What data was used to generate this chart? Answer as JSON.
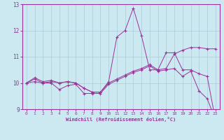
{
  "xlabel": "Windchill (Refroidissement éolien,°C)",
  "background_color": "#cce8f0",
  "line_color": "#993399",
  "grid_color": "#aaccdd",
  "xlim": [
    -0.5,
    23.5
  ],
  "ylim": [
    9.0,
    13.0
  ],
  "yticks": [
    9,
    10,
    11,
    12,
    13
  ],
  "xticks": [
    0,
    1,
    2,
    3,
    4,
    5,
    6,
    7,
    8,
    9,
    10,
    11,
    12,
    13,
    14,
    15,
    16,
    17,
    18,
    19,
    20,
    21,
    22,
    23
  ],
  "line1_y": [
    10.0,
    10.2,
    10.05,
    10.1,
    10.0,
    10.05,
    10.0,
    9.8,
    9.65,
    9.65,
    10.05,
    11.75,
    12.0,
    12.85,
    11.8,
    10.5,
    10.5,
    11.15,
    11.15,
    10.5,
    10.5,
    10.35,
    10.25,
    8.6
  ],
  "line2_y": [
    10.0,
    10.15,
    10.0,
    10.05,
    10.0,
    10.05,
    10.0,
    9.8,
    9.65,
    9.65,
    10.0,
    10.15,
    10.3,
    10.45,
    10.55,
    10.7,
    10.5,
    10.55,
    11.1,
    11.25,
    11.35,
    11.35,
    11.3,
    11.3
  ],
  "line3_y": [
    10.0,
    10.05,
    10.0,
    10.0,
    9.75,
    9.9,
    9.95,
    9.6,
    9.6,
    9.6,
    9.95,
    10.1,
    10.25,
    10.4,
    10.5,
    10.65,
    10.45,
    10.5,
    10.55,
    10.25,
    10.45,
    9.7,
    9.4,
    8.6
  ]
}
